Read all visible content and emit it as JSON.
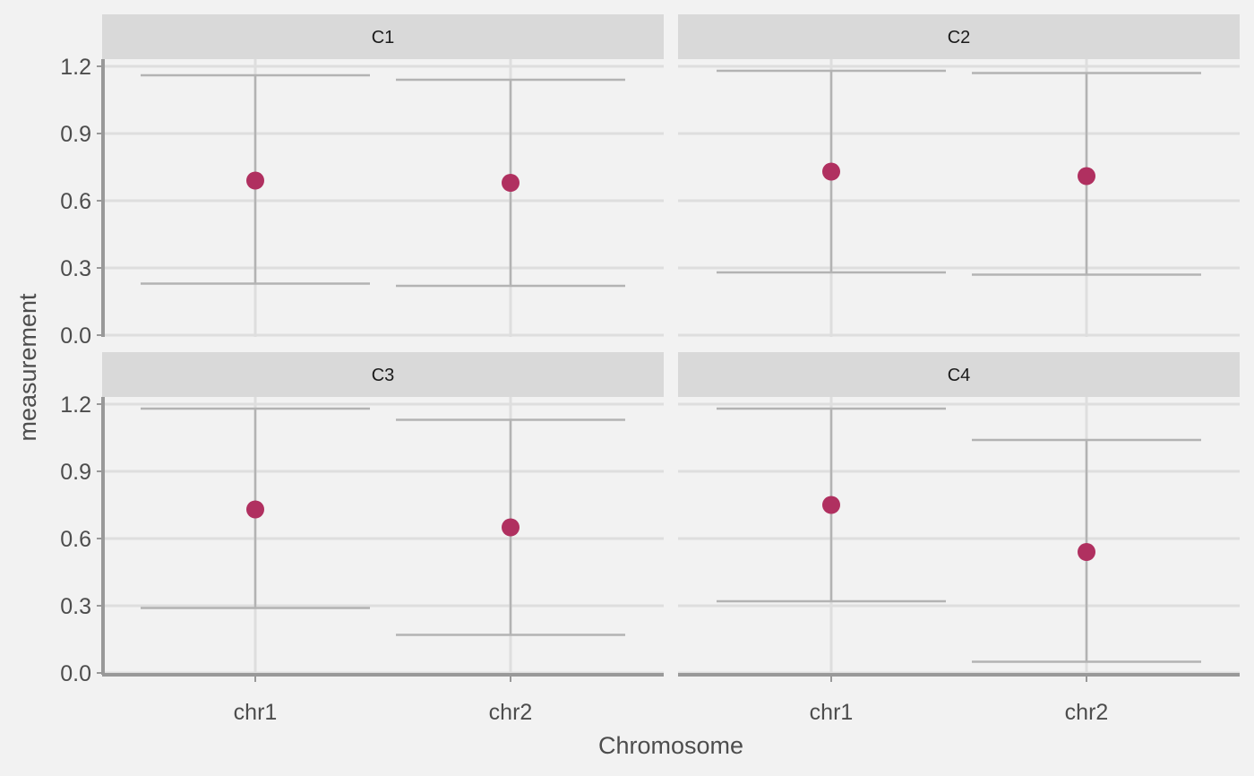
{
  "chart_data": {
    "type": "scatter",
    "facet_layout": "2x2",
    "xlabel": "Chromosome",
    "ylabel": "measurement",
    "categories": [
      "chr1",
      "chr2"
    ],
    "ylim": [
      0,
      1.25
    ],
    "yticks": [
      "0.0",
      "0.3",
      "0.6",
      "0.9",
      "1.2"
    ],
    "ytick_values": [
      0,
      0.3,
      0.6,
      0.9,
      1.2
    ],
    "grid": true,
    "colors": {
      "background": "#f2f2f2",
      "strip": "#d9d9d9",
      "grid": "#dedede",
      "errorbar": "#b3b3b3",
      "point": "#b03060",
      "axis_line": "#999999"
    },
    "panels": [
      {
        "label": "C1",
        "points": [
          {
            "x": "chr1",
            "y": 0.69,
            "ymin": 0.23,
            "ymax": 1.16
          },
          {
            "x": "chr2",
            "y": 0.68,
            "ymin": 0.22,
            "ymax": 1.14
          }
        ]
      },
      {
        "label": "C2",
        "points": [
          {
            "x": "chr1",
            "y": 0.73,
            "ymin": 0.28,
            "ymax": 1.18
          },
          {
            "x": "chr2",
            "y": 0.71,
            "ymin": 0.27,
            "ymax": 1.17
          }
        ]
      },
      {
        "label": "C3",
        "points": [
          {
            "x": "chr1",
            "y": 0.73,
            "ymin": 0.29,
            "ymax": 1.18
          },
          {
            "x": "chr2",
            "y": 0.65,
            "ymin": 0.17,
            "ymax": 1.13
          }
        ]
      },
      {
        "label": "C4",
        "points": [
          {
            "x": "chr1",
            "y": 0.75,
            "ymin": 0.32,
            "ymax": 1.18
          },
          {
            "x": "chr2",
            "y": 0.54,
            "ymin": 0.05,
            "ymax": 1.04
          }
        ]
      }
    ]
  }
}
